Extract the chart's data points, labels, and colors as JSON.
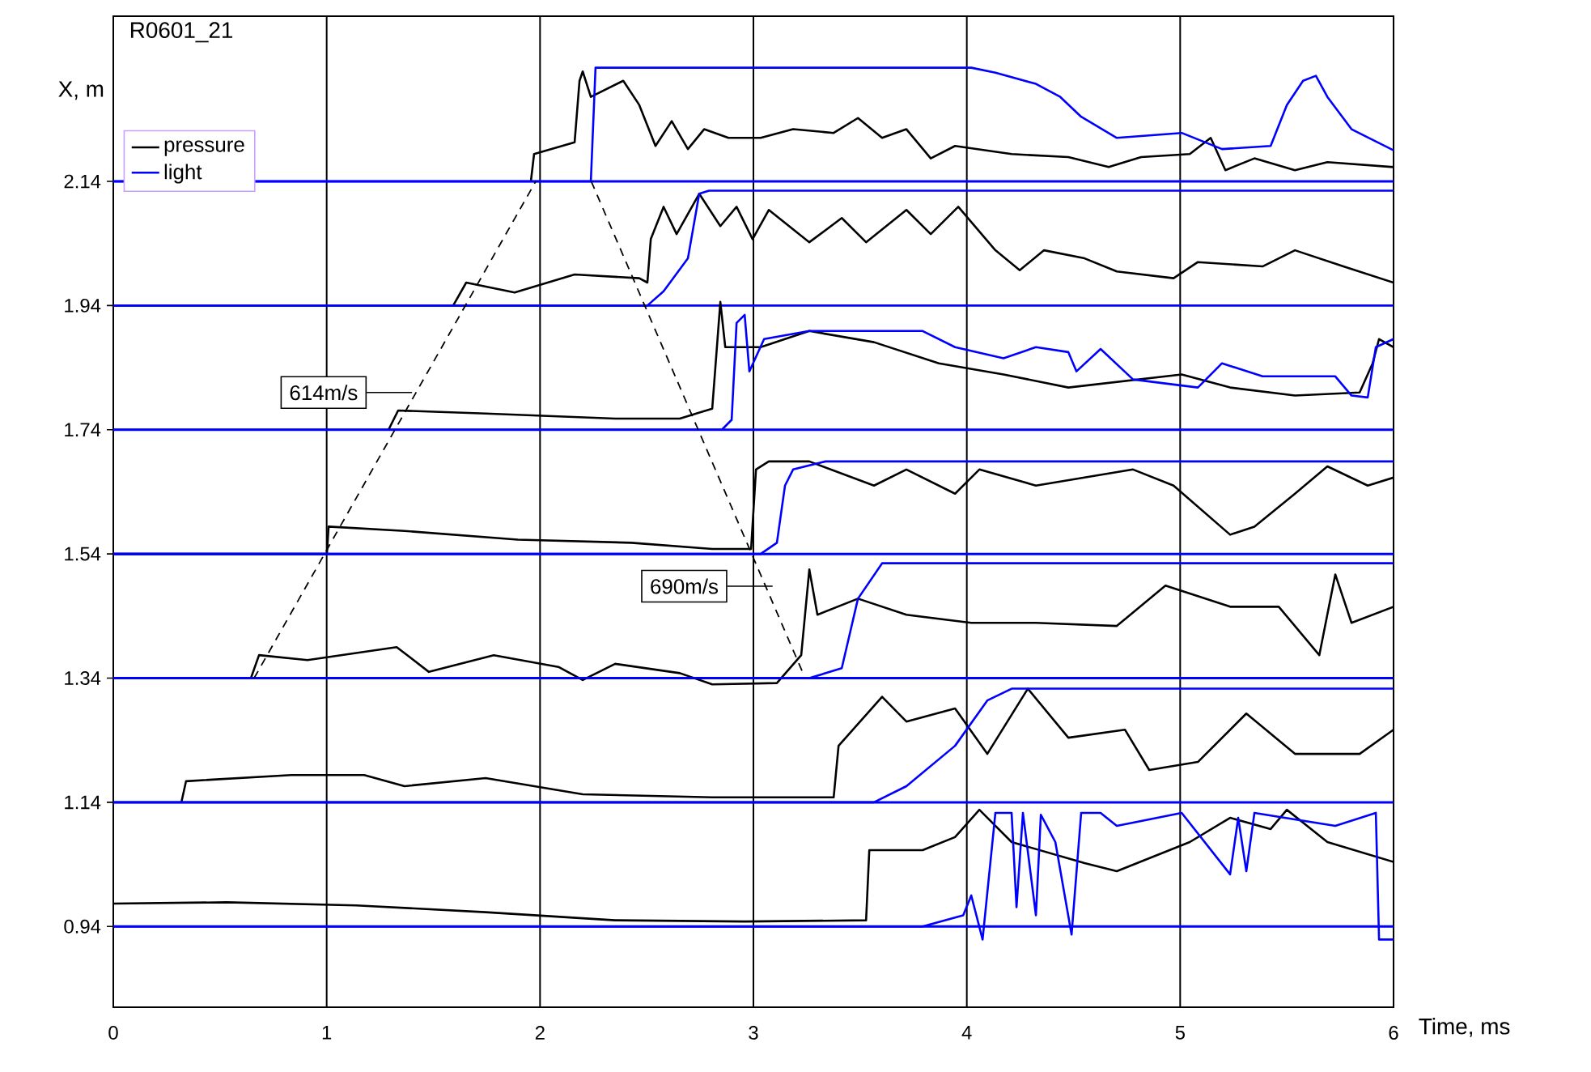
{
  "chart_data": {
    "type": "line",
    "title": "R0601_21",
    "xlabel": "Time, ms",
    "ylabel": "X, m",
    "xlim": [
      0,
      6
    ],
    "ylim": [
      0.81,
      2.406
    ],
    "xticks": [
      0,
      1,
      2,
      3,
      4,
      5,
      6
    ],
    "yticks": [
      0.94,
      1.14,
      1.34,
      1.54,
      1.74,
      1.94,
      2.14
    ],
    "grid": "x",
    "legend": "top left",
    "line_style": "solid",
    "annotations": [
      {
        "text": "614m/s",
        "x": 1.4,
        "y": 1.8
      },
      {
        "text": "690m/s",
        "x": 3.09,
        "y": 1.488
      }
    ],
    "ref_lines": [
      {
        "axis": "y",
        "value": 0.94,
        "color": "#0000ff"
      },
      {
        "axis": "y",
        "value": 1.14,
        "color": "#0000ff"
      },
      {
        "axis": "y",
        "value": 1.34,
        "color": "#0000ff"
      },
      {
        "axis": "y",
        "value": 1.54,
        "color": "#0000ff"
      },
      {
        "axis": "y",
        "value": 1.74,
        "color": "#0000ff"
      },
      {
        "axis": "y",
        "value": 1.94,
        "color": "#0000ff"
      },
      {
        "axis": "y",
        "value": 2.14,
        "color": "#0000ff"
      }
    ],
    "series": [
      {
        "name": "pressure",
        "color": "#000000",
        "x": [
          1.957,
          1.972,
          2.162,
          2.185,
          2.2,
          2.238,
          2.314,
          2.39,
          2.465,
          2.541,
          2.617,
          2.693,
          2.769,
          2.883,
          3.034,
          3.186,
          3.376,
          3.49,
          3.603,
          3.717,
          3.831,
          3.945,
          4.21,
          4.476,
          4.665,
          4.817,
          5.045,
          5.143,
          5.212,
          5.348,
          5.538,
          5.69,
          6.0
        ],
        "values": [
          2.14,
          2.184,
          2.203,
          2.302,
          2.317,
          2.276,
          2.289,
          2.302,
          2.263,
          2.197,
          2.237,
          2.192,
          2.224,
          2.21,
          2.21,
          2.224,
          2.218,
          2.242,
          2.21,
          2.224,
          2.177,
          2.197,
          2.184,
          2.179,
          2.163,
          2.179,
          2.184,
          2.21,
          2.158,
          2.177,
          2.158,
          2.171,
          2.163
        ]
      },
      {
        "name": "light",
        "color": "#0000ff",
        "x": [
          0,
          2.238,
          2.26,
          4.021,
          4.134,
          4.324,
          4.438,
          4.536,
          4.703,
          5.007,
          5.196,
          5.424,
          5.5,
          5.576,
          5.636,
          5.69,
          5.803,
          6.0
        ],
        "values": [
          2.14,
          2.14,
          2.323,
          2.323,
          2.315,
          2.297,
          2.276,
          2.244,
          2.21,
          2.218,
          2.192,
          2.197,
          2.263,
          2.302,
          2.31,
          2.276,
          2.224,
          2.19
        ]
      },
      {
        "color": "#000000",
        "x": [
          1.593,
          1.654,
          1.881,
          2.162,
          2.465,
          2.503,
          2.519,
          2.579,
          2.64,
          2.746,
          2.845,
          2.921,
          2.996,
          3.072,
          3.262,
          3.414,
          3.528,
          3.717,
          3.831,
          3.96,
          4.134,
          4.248,
          4.362,
          4.552,
          4.703,
          4.969,
          5.083,
          5.386,
          5.538,
          5.765,
          6.0
        ],
        "values": [
          1.94,
          1.977,
          1.961,
          1.99,
          1.984,
          1.977,
          2.047,
          2.099,
          2.055,
          2.12,
          2.068,
          2.099,
          2.047,
          2.094,
          2.042,
          2.081,
          2.042,
          2.094,
          2.055,
          2.099,
          2.029,
          1.997,
          2.029,
          2.016,
          1.995,
          1.984,
          2.01,
          2.003,
          2.029,
          2.003,
          1.977
        ]
      },
      {
        "color": "#0000ff",
        "x": [
          0,
          2.503,
          2.579,
          2.693,
          2.746,
          2.792,
          6.0
        ],
        "values": [
          1.94,
          1.94,
          1.963,
          2.016,
          2.12,
          2.125,
          2.125
        ]
      },
      {
        "color": "#000000",
        "x": [
          1.29,
          1.335,
          1.745,
          2.352,
          2.655,
          2.807,
          2.845,
          2.868,
          3.034,
          3.262,
          3.565,
          3.869,
          4.172,
          4.476,
          5.007,
          5.234,
          5.538,
          5.841,
          5.902,
          5.932,
          6.0
        ],
        "values": [
          1.74,
          1.771,
          1.766,
          1.758,
          1.758,
          1.774,
          1.946,
          1.873,
          1.873,
          1.899,
          1.881,
          1.847,
          1.829,
          1.808,
          1.829,
          1.808,
          1.795,
          1.8,
          1.847,
          1.886,
          1.873
        ]
      },
      {
        "color": "#0000ff",
        "x": [
          0,
          2.852,
          2.898,
          2.921,
          2.959,
          2.981,
          3.05,
          3.262,
          3.793,
          3.945,
          4.172,
          4.324,
          4.476,
          4.514,
          4.627,
          4.779,
          5.083,
          5.196,
          5.386,
          5.727,
          5.803,
          5.879,
          5.917,
          6.0
        ],
        "values": [
          1.74,
          1.74,
          1.756,
          1.912,
          1.925,
          1.834,
          1.886,
          1.899,
          1.899,
          1.873,
          1.855,
          1.873,
          1.865,
          1.834,
          1.87,
          1.821,
          1.808,
          1.847,
          1.826,
          1.826,
          1.795,
          1.792,
          1.873,
          1.886
        ]
      },
      {
        "color": "#000000",
        "x": [
          0,
          1.001,
          1.009,
          1.365,
          1.896,
          2.428,
          2.807,
          2.989,
          3.012,
          3.072,
          3.262,
          3.565,
          3.717,
          3.945,
          4.059,
          4.324,
          4.779,
          4.969,
          5.234,
          5.348,
          5.538,
          5.69,
          5.879,
          6.0
        ],
        "values": [
          1.54,
          1.54,
          1.584,
          1.577,
          1.563,
          1.558,
          1.548,
          1.548,
          1.676,
          1.689,
          1.689,
          1.65,
          1.676,
          1.637,
          1.676,
          1.65,
          1.676,
          1.65,
          1.571,
          1.584,
          1.637,
          1.681,
          1.65,
          1.663
        ]
      },
      {
        "color": "#0000ff",
        "x": [
          0,
          3.034,
          3.11,
          3.148,
          3.186,
          3.338,
          6.0
        ],
        "values": [
          1.54,
          1.54,
          1.558,
          1.65,
          1.676,
          1.689,
          1.689
        ]
      },
      {
        "color": "#000000",
        "x": [
          0.645,
          0.683,
          0.91,
          1.328,
          1.479,
          1.783,
          2.086,
          2.2,
          2.352,
          2.655,
          2.807,
          3.11,
          3.224,
          3.262,
          3.3,
          3.49,
          3.717,
          4.021,
          4.324,
          4.703,
          4.931,
          5.234,
          5.462,
          5.652,
          5.727,
          5.803,
          6.0
        ],
        "values": [
          1.34,
          1.377,
          1.369,
          1.39,
          1.35,
          1.377,
          1.358,
          1.337,
          1.363,
          1.348,
          1.33,
          1.332,
          1.377,
          1.515,
          1.442,
          1.468,
          1.442,
          1.429,
          1.429,
          1.424,
          1.489,
          1.455,
          1.455,
          1.377,
          1.507,
          1.429,
          1.455
        ]
      },
      {
        "color": "#0000ff",
        "x": [
          0,
          3.262,
          3.414,
          3.49,
          3.603,
          6.0
        ],
        "values": [
          1.34,
          1.34,
          1.356,
          1.468,
          1.525,
          1.525
        ]
      },
      {
        "color": "#000000",
        "x": [
          0.319,
          0.341,
          0.834,
          1.176,
          1.365,
          1.745,
          2.2,
          2.807,
          3.376,
          3.399,
          3.603,
          3.717,
          3.945,
          4.096,
          4.286,
          4.476,
          4.741,
          4.855,
          5.083,
          5.31,
          5.538,
          5.841,
          6.0
        ],
        "values": [
          1.14,
          1.174,
          1.184,
          1.184,
          1.166,
          1.179,
          1.153,
          1.148,
          1.148,
          1.231,
          1.31,
          1.27,
          1.291,
          1.218,
          1.323,
          1.244,
          1.257,
          1.192,
          1.205,
          1.283,
          1.218,
          1.218,
          1.257
        ]
      },
      {
        "color": "#0000ff",
        "x": [
          0,
          3.565,
          3.717,
          3.945,
          4.096,
          4.21,
          6.0
        ],
        "values": [
          1.14,
          1.14,
          1.166,
          1.231,
          1.304,
          1.323,
          1.323
        ]
      },
      {
        "color": "#000000",
        "x": [
          0,
          0.531,
          1.138,
          1.745,
          2.352,
          2.959,
          3.528,
          3.543,
          3.793,
          3.945,
          4.059,
          4.21,
          4.552,
          4.703,
          5.045,
          5.234,
          5.424,
          5.5,
          5.69,
          6.0
        ],
        "values": [
          0.977,
          0.979,
          0.974,
          0.963,
          0.95,
          0.948,
          0.95,
          1.063,
          1.063,
          1.084,
          1.128,
          1.076,
          1.042,
          1.029,
          1.076,
          1.115,
          1.097,
          1.128,
          1.076,
          1.044
        ]
      },
      {
        "color": "#0000ff",
        "x": [
          0,
          3.793,
          3.983,
          4.021,
          4.074,
          4.134,
          4.21,
          4.233,
          4.263,
          4.324,
          4.347,
          4.415,
          4.491,
          4.536,
          4.627,
          4.703,
          5.007,
          5.234,
          5.272,
          5.31,
          5.348,
          5.727,
          5.917,
          5.932,
          6.0
        ],
        "values": [
          0.94,
          0.94,
          0.958,
          0.99,
          0.919,
          1.123,
          1.123,
          0.971,
          1.123,
          0.958,
          1.12,
          1.076,
          0.927,
          1.123,
          1.123,
          1.102,
          1.123,
          1.024,
          1.115,
          1.029,
          1.123,
          1.102,
          1.123,
          0.919,
          0.919
        ]
      },
      {
        "color": "#000000",
        "line_style": "dashed",
        "x": [
          0.66,
          1.98
        ],
        "values": [
          1.34,
          2.14
        ]
      },
      {
        "color": "#000000",
        "line_style": "dashed",
        "x": [
          2.24,
          3.23
        ],
        "values": [
          2.14,
          1.35
        ]
      }
    ]
  }
}
